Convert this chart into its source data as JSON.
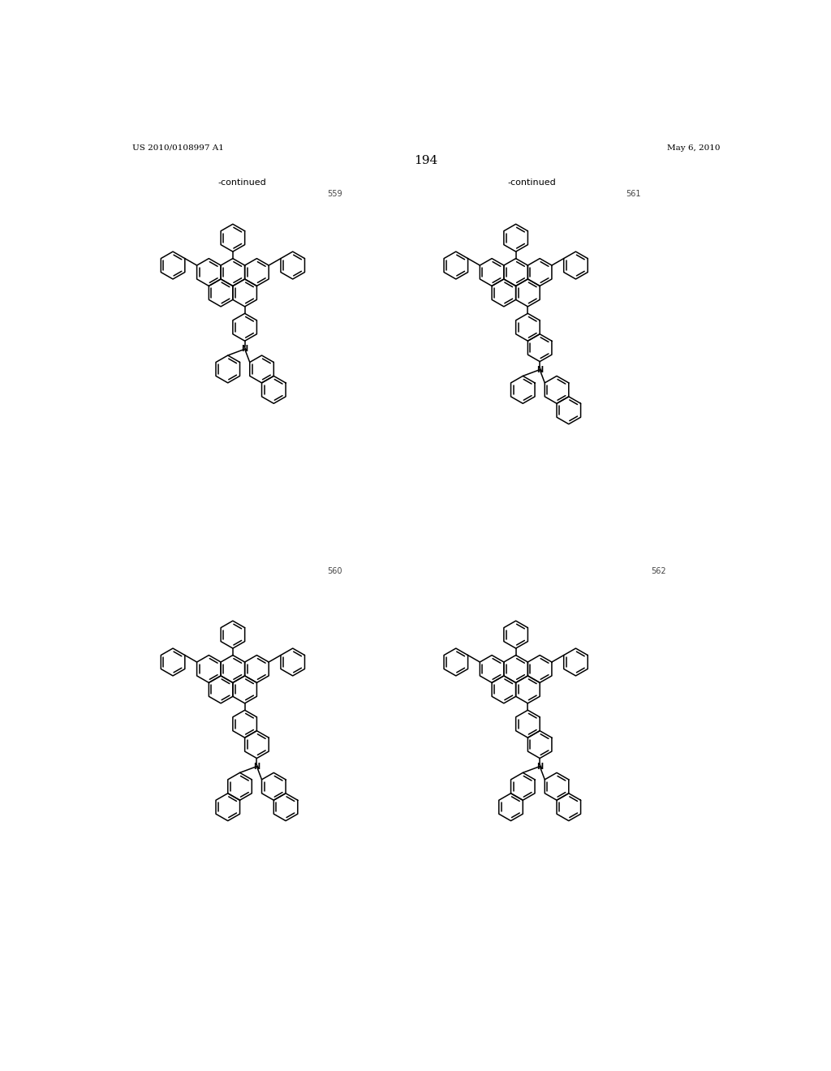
{
  "page_header_left": "US 2010/0108997 A1",
  "page_header_right": "May 6, 2010",
  "page_number": "194",
  "background_color": "#ffffff",
  "text_color": "#000000",
  "continued_label": "-continued",
  "compound_numbers": [
    "559",
    "561",
    "560",
    "562"
  ],
  "lw": 1.1,
  "r": 0.22
}
